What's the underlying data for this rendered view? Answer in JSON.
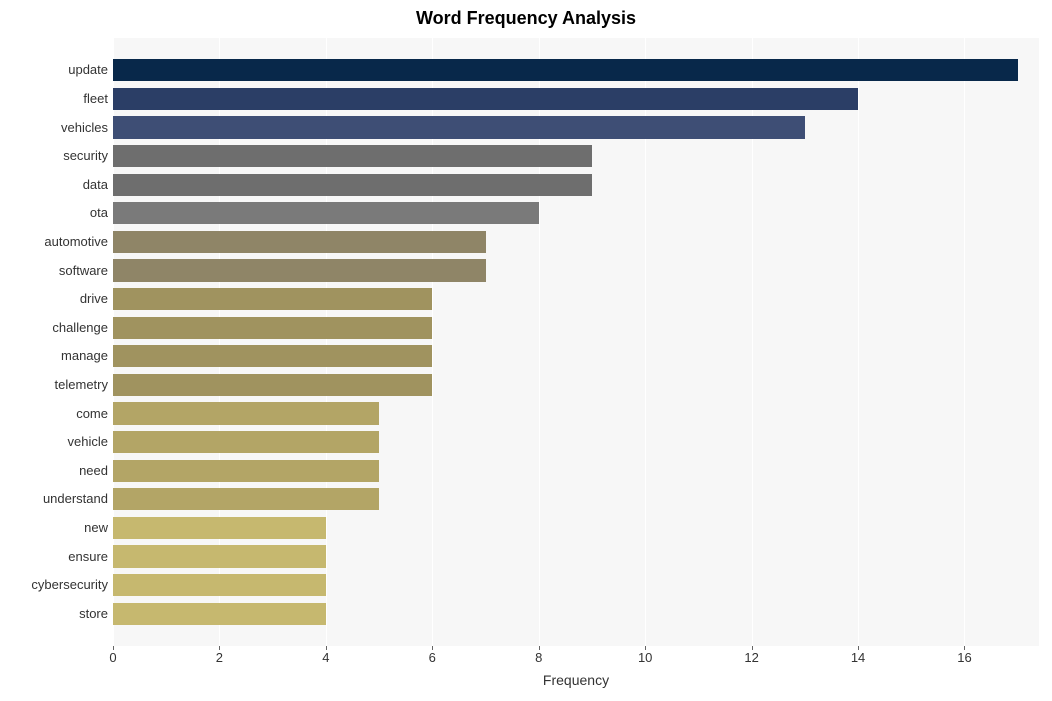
{
  "chart": {
    "type": "bar",
    "orientation": "horizontal",
    "title": "Word Frequency Analysis",
    "title_fontsize": 18,
    "title_fontweight": "bold",
    "title_color": "#000000",
    "xlabel": "Frequency",
    "xlabel_fontsize": 14,
    "ylabel_fontsize": 13,
    "tick_fontsize": 13,
    "background_color": "#ffffff",
    "plot_background_color": "#f7f7f7",
    "grid_color": "#ffffff",
    "grid_linewidth": 1,
    "xlim": [
      0,
      17.4
    ],
    "xtick_step": 2,
    "xticks": [
      0,
      2,
      4,
      6,
      8,
      10,
      12,
      14,
      16
    ],
    "bar_height_ratio": 0.78,
    "categories": [
      "update",
      "fleet",
      "vehicles",
      "security",
      "data",
      "ota",
      "automotive",
      "software",
      "drive",
      "challenge",
      "manage",
      "telemetry",
      "come",
      "vehicle",
      "need",
      "understand",
      "new",
      "ensure",
      "cybersecurity",
      "store"
    ],
    "values": [
      17,
      14,
      13,
      9,
      9,
      8,
      7,
      7,
      6,
      6,
      6,
      6,
      5,
      5,
      5,
      5,
      4,
      4,
      4,
      4
    ],
    "bar_colors": [
      "#08284a",
      "#2b3e66",
      "#3e4e75",
      "#6e6e6e",
      "#6e6e6e",
      "#7a7a7a",
      "#8f8567",
      "#8f8567",
      "#a0935f",
      "#a0935f",
      "#a0935f",
      "#a0935f",
      "#b3a566",
      "#b3a566",
      "#b3a566",
      "#b3a566",
      "#c6b86f",
      "#c6b86f",
      "#c6b86f",
      "#c6b86f"
    ]
  }
}
